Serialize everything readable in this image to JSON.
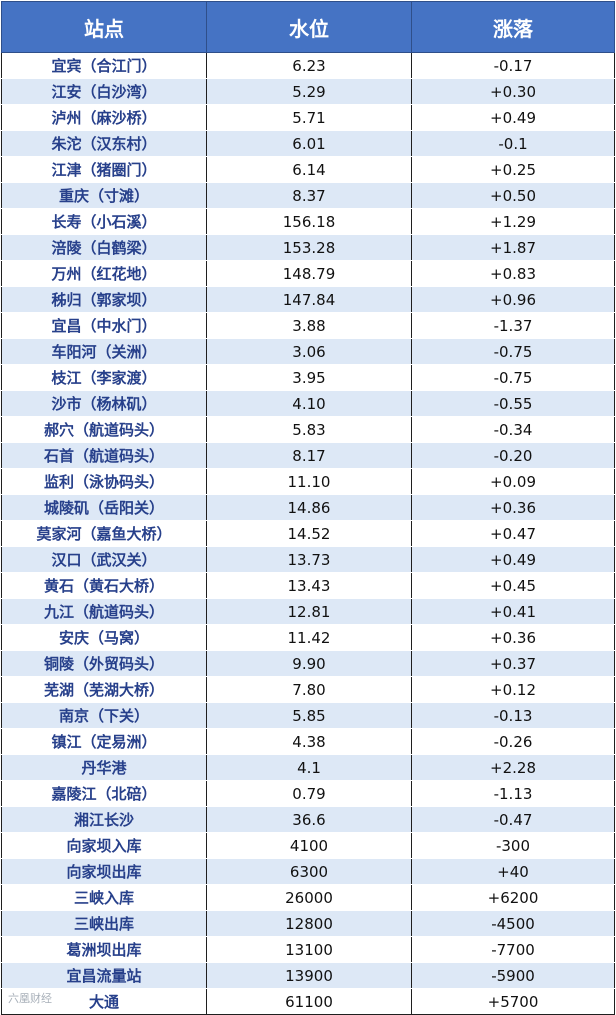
{
  "table": {
    "headers": {
      "station": "站点",
      "level": "水位",
      "change": "涨落"
    },
    "rows": [
      {
        "station": "宜宾（合江门）",
        "level": "6.23",
        "change": "-0.17"
      },
      {
        "station": "江安（白沙湾）",
        "level": "5.29",
        "change": "+0.30"
      },
      {
        "station": "泸州（麻沙桥）",
        "level": "5.71",
        "change": "+0.49"
      },
      {
        "station": "朱沱（汉东村）",
        "level": "6.01",
        "change": "-0.1"
      },
      {
        "station": "江津（猪圈门）",
        "level": "6.14",
        "change": "+0.25"
      },
      {
        "station": "重庆（寸滩）",
        "level": "8.37",
        "change": "+0.50"
      },
      {
        "station": "长寿（小石溪）",
        "level": "156.18",
        "change": "+1.29"
      },
      {
        "station": "涪陵（白鹤梁）",
        "level": "153.28",
        "change": "+1.87"
      },
      {
        "station": "万州（红花地）",
        "level": "148.79",
        "change": "+0.83"
      },
      {
        "station": "秭归（郭家坝）",
        "level": "147.84",
        "change": "+0.96"
      },
      {
        "station": "宜昌（中水门）",
        "level": "3.88",
        "change": "-1.37"
      },
      {
        "station": "车阳河（关洲）",
        "level": "3.06",
        "change": "-0.75"
      },
      {
        "station": "枝江（李家渡）",
        "level": "3.95",
        "change": "-0.75"
      },
      {
        "station": "沙市（杨林矶）",
        "level": "4.10",
        "change": "-0.55"
      },
      {
        "station": "郝穴（航道码头）",
        "level": "5.83",
        "change": "-0.34"
      },
      {
        "station": "石首（航道码头）",
        "level": "8.17",
        "change": "-0.20"
      },
      {
        "station": "监利（泳协码头）",
        "level": "11.10",
        "change": "+0.09"
      },
      {
        "station": "城陵矶（岳阳关）",
        "level": "14.86",
        "change": "+0.36"
      },
      {
        "station": "莫家河（嘉鱼大桥）",
        "level": "14.52",
        "change": "+0.47"
      },
      {
        "station": "汉口（武汉关）",
        "level": "13.73",
        "change": "+0.49"
      },
      {
        "station": "黄石（黄石大桥）",
        "level": "13.43",
        "change": "+0.45"
      },
      {
        "station": "九江（航道码头）",
        "level": "12.81",
        "change": "+0.41"
      },
      {
        "station": "安庆（马窝）",
        "level": "11.42",
        "change": "+0.36"
      },
      {
        "station": "铜陵（外贸码头）",
        "level": "9.90",
        "change": "+0.37"
      },
      {
        "station": "芜湖（芜湖大桥）",
        "level": "7.80",
        "change": "+0.12"
      },
      {
        "station": "南京（下关）",
        "level": "5.85",
        "change": "-0.13"
      },
      {
        "station": "镇江（定易洲）",
        "level": "4.38",
        "change": "-0.26"
      },
      {
        "station": "丹华港",
        "level": "4.1",
        "change": "+2.28"
      },
      {
        "station": "嘉陵江（北碚）",
        "level": "0.79",
        "change": "-1.13"
      },
      {
        "station": "湘江长沙",
        "level": "36.6",
        "change": "-0.47"
      },
      {
        "station": "向家坝入库",
        "level": "4100",
        "change": "-300"
      },
      {
        "station": "向家坝出库",
        "level": "6300",
        "change": "+40"
      },
      {
        "station": "三峡入库",
        "level": "26000",
        "change": "+6200"
      },
      {
        "station": "三峡出库",
        "level": "12800",
        "change": "-4500"
      },
      {
        "station": "葛洲坝出库",
        "level": "13100",
        "change": "-7700"
      },
      {
        "station": "宜昌流量站",
        "level": "13900",
        "change": "-5900"
      },
      {
        "station": "大通",
        "level": "61100",
        "change": "+5700"
      }
    ]
  },
  "watermark": "六凰财经",
  "colors": {
    "header_bg": "#4573c4",
    "stripe": "#dde8f6",
    "station_text": "#27408b"
  }
}
